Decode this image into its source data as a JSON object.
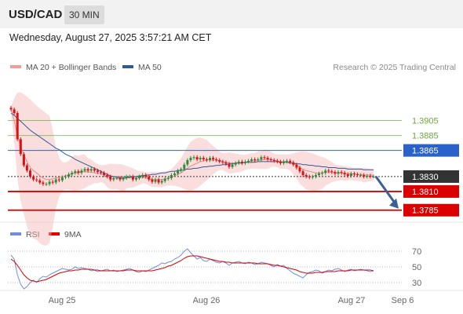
{
  "header": {
    "symbol": "USD/CAD",
    "timeframe": "30 MIN"
  },
  "timestamp": "Wednesday, August 27, 2025 3:57:21 AM CET",
  "price_legend": {
    "item1": "MA 20 + Bollinger Bands",
    "item2": "MA 50"
  },
  "copyright": "Research © 2025 Trading Central",
  "rsi_legend": {
    "item1": "RSI",
    "item2": "9MA"
  },
  "colors": {
    "bollinger": "#f5b5b5",
    "ma20": "#e88888",
    "ma50": "#2e5a9c",
    "support": "#dd0000",
    "resistance_green": "#6aaa3a",
    "pivot": "#2b62c9",
    "rsi": "#6f8ee0",
    "rsi_ma": "#dd0000",
    "up_candle": "#2e8b3a",
    "down_candle": "#dd1111",
    "arrow": "#3a5f9a",
    "last_price": "#333333"
  },
  "chart_data": [
    {
      "type": "candlestick",
      "title": "",
      "x_ticks": [
        "Aug 25",
        "Aug 26",
        "Aug 27",
        "Sep 6"
      ],
      "ylim": [
        1.377,
        1.3935
      ],
      "levels": [
        {
          "value": 1.3905,
          "label": "1.3905",
          "kind": "resistance",
          "color": "#6aaa3a"
        },
        {
          "value": 1.3885,
          "label": "1.3885",
          "kind": "resistance",
          "color": "#6aaa3a"
        },
        {
          "value": 1.3865,
          "label": "1.3865",
          "kind": "pivot",
          "color": "#2b62c9"
        },
        {
          "value": 1.383,
          "label": "1.3830",
          "kind": "last",
          "color": "#333333"
        },
        {
          "value": 1.381,
          "label": "1.3810",
          "kind": "support",
          "color": "#dd0000"
        },
        {
          "value": 1.3785,
          "label": "1.3785",
          "kind": "support",
          "color": "#dd0000"
        }
      ],
      "close": [
        1.392,
        1.3915,
        1.388,
        1.386,
        1.3845,
        1.3838,
        1.383,
        1.3826,
        1.3825,
        1.3822,
        1.382,
        1.382,
        1.3823,
        1.3822,
        1.3826,
        1.3825,
        1.3829,
        1.383,
        1.3833,
        1.3835,
        1.3837,
        1.3835,
        1.3838,
        1.384,
        1.3838,
        1.384,
        1.3838,
        1.3836,
        1.3835,
        1.3832,
        1.383,
        1.3826,
        1.3828,
        1.3828,
        1.3826,
        1.3828,
        1.383,
        1.383,
        1.3826,
        1.3828,
        1.383,
        1.3832,
        1.383,
        1.3826,
        1.3823,
        1.3826,
        1.3822,
        1.3824,
        1.3827,
        1.3828,
        1.3832,
        1.3834,
        1.3838,
        1.384,
        1.3846,
        1.3852,
        1.3855,
        1.3856,
        1.3853,
        1.3855,
        1.3853,
        1.3852,
        1.3855,
        1.3853,
        1.3852,
        1.385,
        1.3849,
        1.3847,
        1.3843,
        1.3846,
        1.3848,
        1.385,
        1.3848,
        1.385,
        1.3851,
        1.3853,
        1.3852,
        1.3853,
        1.3856,
        1.3855,
        1.3853,
        1.3852,
        1.3851,
        1.385,
        1.3848,
        1.385,
        1.3851,
        1.3849,
        1.3846,
        1.3842,
        1.3837,
        1.3832,
        1.383,
        1.3829,
        1.383,
        1.3832,
        1.3834,
        1.3835,
        1.3838,
        1.3837,
        1.3836,
        1.3834,
        1.3836,
        1.3835,
        1.3833,
        1.3831,
        1.3834,
        1.3833,
        1.3832,
        1.3832,
        1.383,
        1.3831,
        1.383,
        1.383
      ],
      "ma20": [
        1.392,
        1.3905,
        1.3885,
        1.387,
        1.386,
        1.385,
        1.3842,
        1.3838,
        1.3835,
        1.3831,
        1.3828,
        1.3826,
        1.3826,
        1.3827,
        1.3828,
        1.3829,
        1.383,
        1.3831,
        1.3832,
        1.3834,
        1.3835,
        1.3835,
        1.3836,
        1.3837,
        1.3836,
        1.3836,
        1.3835,
        1.3834,
        1.3834,
        1.3833,
        1.3831,
        1.383,
        1.383,
        1.383,
        1.3829,
        1.3828,
        1.3829,
        1.3829,
        1.3828,
        1.3828,
        1.3828,
        1.3829,
        1.3828,
        1.3827,
        1.3826,
        1.3826,
        1.3826,
        1.3826,
        1.3827,
        1.3828,
        1.3829,
        1.3831,
        1.3833,
        1.3835,
        1.3838,
        1.3841,
        1.3844,
        1.3846,
        1.3848,
        1.385,
        1.3851,
        1.3852,
        1.3852,
        1.3852,
        1.3852,
        1.3851,
        1.385,
        1.3849,
        1.3848,
        1.3848,
        1.3848,
        1.3848,
        1.3848,
        1.3849,
        1.385,
        1.3851,
        1.3851,
        1.3852,
        1.3852,
        1.3853,
        1.3853,
        1.3853,
        1.3852,
        1.3851,
        1.385,
        1.385,
        1.385,
        1.3849,
        1.3847,
        1.3845,
        1.3842,
        1.384,
        1.3838,
        1.3837,
        1.3836,
        1.3835,
        1.3835,
        1.3835,
        1.3836,
        1.3836,
        1.3836,
        1.3835,
        1.3835,
        1.3835,
        1.3834,
        1.3834,
        1.3834,
        1.3833,
        1.3833,
        1.3833,
        1.3832,
        1.3832,
        1.3832,
        1.3832
      ],
      "ma50": [
        1.3915,
        1.3912,
        1.3908,
        1.3904,
        1.39,
        1.3896,
        1.3892,
        1.3889,
        1.3886,
        1.3883,
        1.388,
        1.3877,
        1.3874,
        1.3871,
        1.3868,
        1.3866,
        1.3863,
        1.386,
        1.3858,
        1.3856,
        1.3853,
        1.3851,
        1.3849,
        1.3847,
        1.3845,
        1.3843,
        1.3841,
        1.3839,
        1.3837,
        1.3835,
        1.3833,
        1.3831,
        1.383,
        1.3829,
        1.3828,
        1.3828,
        1.3828,
        1.3829,
        1.383,
        1.383,
        1.3831,
        1.3831,
        1.3832,
        1.3832,
        1.3833,
        1.3833,
        1.3834,
        1.3835,
        1.3835,
        1.3836,
        1.3837,
        1.3837,
        1.3838,
        1.3838,
        1.3839,
        1.384,
        1.384,
        1.3841,
        1.3841,
        1.3842,
        1.3843,
        1.3843,
        1.3844,
        1.3844,
        1.3845,
        1.3845,
        1.3846,
        1.3846,
        1.3847,
        1.3847,
        1.3848,
        1.3848,
        1.3848,
        1.3849,
        1.3849,
        1.3849,
        1.3849,
        1.385,
        1.385,
        1.385,
        1.385,
        1.385,
        1.385,
        1.385,
        1.3849,
        1.3849,
        1.3849,
        1.3848,
        1.3848,
        1.3847,
        1.3847,
        1.3846,
        1.3846,
        1.3845,
        1.3845,
        1.3844,
        1.3844,
        1.3843,
        1.3843,
        1.3842,
        1.3842,
        1.3842,
        1.3841,
        1.3841,
        1.3841,
        1.384,
        1.384,
        1.384,
        1.384,
        1.384,
        1.3839,
        1.3839,
        1.3839,
        1.3839
      ],
      "projection": {
        "from": 1.383,
        "to": 1.3785
      }
    },
    {
      "type": "line",
      "title": "",
      "ylim": [
        18,
        82
      ],
      "y_ticks": [
        30,
        50,
        70
      ],
      "x_ticks": [
        "Aug 25",
        "Aug 26",
        "Aug 27",
        "Sep 6"
      ],
      "series": [
        {
          "name": "RSI",
          "values": [
            65,
            60,
            40,
            28,
            22,
            25,
            30,
            33,
            30,
            35,
            38,
            37,
            40,
            42,
            44,
            46,
            48,
            47,
            46,
            47,
            50,
            48,
            49,
            48,
            47,
            45,
            46,
            44,
            45,
            46,
            47,
            45,
            46,
            44,
            45,
            46,
            47,
            48,
            46,
            44,
            43,
            45,
            44,
            46,
            48,
            50,
            52,
            55,
            54,
            56,
            57,
            60,
            62,
            65,
            70,
            73,
            68,
            64,
            60,
            62,
            58,
            57,
            60,
            58,
            56,
            55,
            57,
            55,
            52,
            55,
            56,
            57,
            55,
            54,
            56,
            55,
            53,
            54,
            56,
            55,
            54,
            52,
            50,
            53,
            51,
            52,
            48,
            45,
            42,
            40,
            38,
            36,
            40,
            43,
            44,
            46,
            45,
            42,
            44,
            46,
            45,
            47,
            48,
            46,
            44,
            46,
            47,
            45,
            46,
            47,
            46,
            45,
            44,
            45
          ]
        },
        {
          "name": "9MA",
          "values": [
            60,
            57,
            52,
            46,
            40,
            36,
            33,
            32,
            31,
            32,
            33,
            34,
            36,
            38,
            40,
            42,
            43,
            44,
            45,
            45,
            46,
            46,
            47,
            47,
            47,
            47,
            46,
            46,
            45,
            45,
            45,
            45,
            45,
            45,
            45,
            45,
            46,
            46,
            46,
            45,
            45,
            45,
            45,
            45,
            45,
            46,
            47,
            48,
            49,
            51,
            52,
            54,
            56,
            58,
            61,
            63,
            64,
            64,
            64,
            63,
            62,
            61,
            60,
            59,
            58,
            57,
            57,
            56,
            56,
            55,
            55,
            55,
            55,
            55,
            55,
            55,
            55,
            54,
            54,
            54,
            54,
            53,
            52,
            52,
            51,
            50,
            49,
            48,
            47,
            46,
            44,
            43,
            42,
            42,
            42,
            43,
            43,
            43,
            44,
            44,
            44,
            44,
            45,
            45,
            45,
            45,
            46,
            46,
            46,
            46,
            46,
            46,
            46,
            45
          ]
        }
      ]
    }
  ]
}
